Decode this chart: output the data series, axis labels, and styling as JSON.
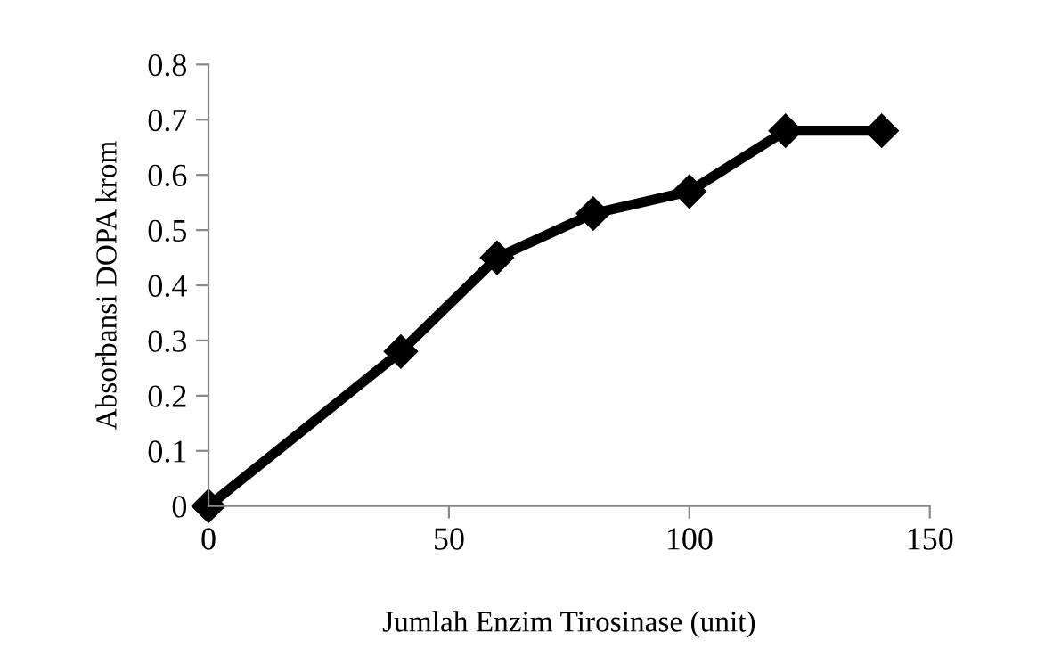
{
  "chart_data": {
    "type": "line",
    "xlabel": "Jumlah Enzim Tirosinase (unit)",
    "ylabel": "Absorbansi DOPA krom",
    "x": [
      0,
      40,
      60,
      80,
      100,
      120,
      140
    ],
    "series": [
      {
        "color": "#000000",
        "values": [
          0,
          0.28,
          0.45,
          0.53,
          0.57,
          0.68,
          0.68
        ]
      }
    ],
    "xlim": [
      0,
      150
    ],
    "xticks": [
      0,
      50,
      100,
      150
    ],
    "ylim": [
      0,
      0.8
    ],
    "yticks": [
      0,
      0.1,
      0.2,
      0.3,
      0.4,
      0.5,
      0.6,
      0.7,
      0.8
    ],
    "grid": false,
    "legend": false,
    "marker": "diamond",
    "line_style": "solid"
  }
}
